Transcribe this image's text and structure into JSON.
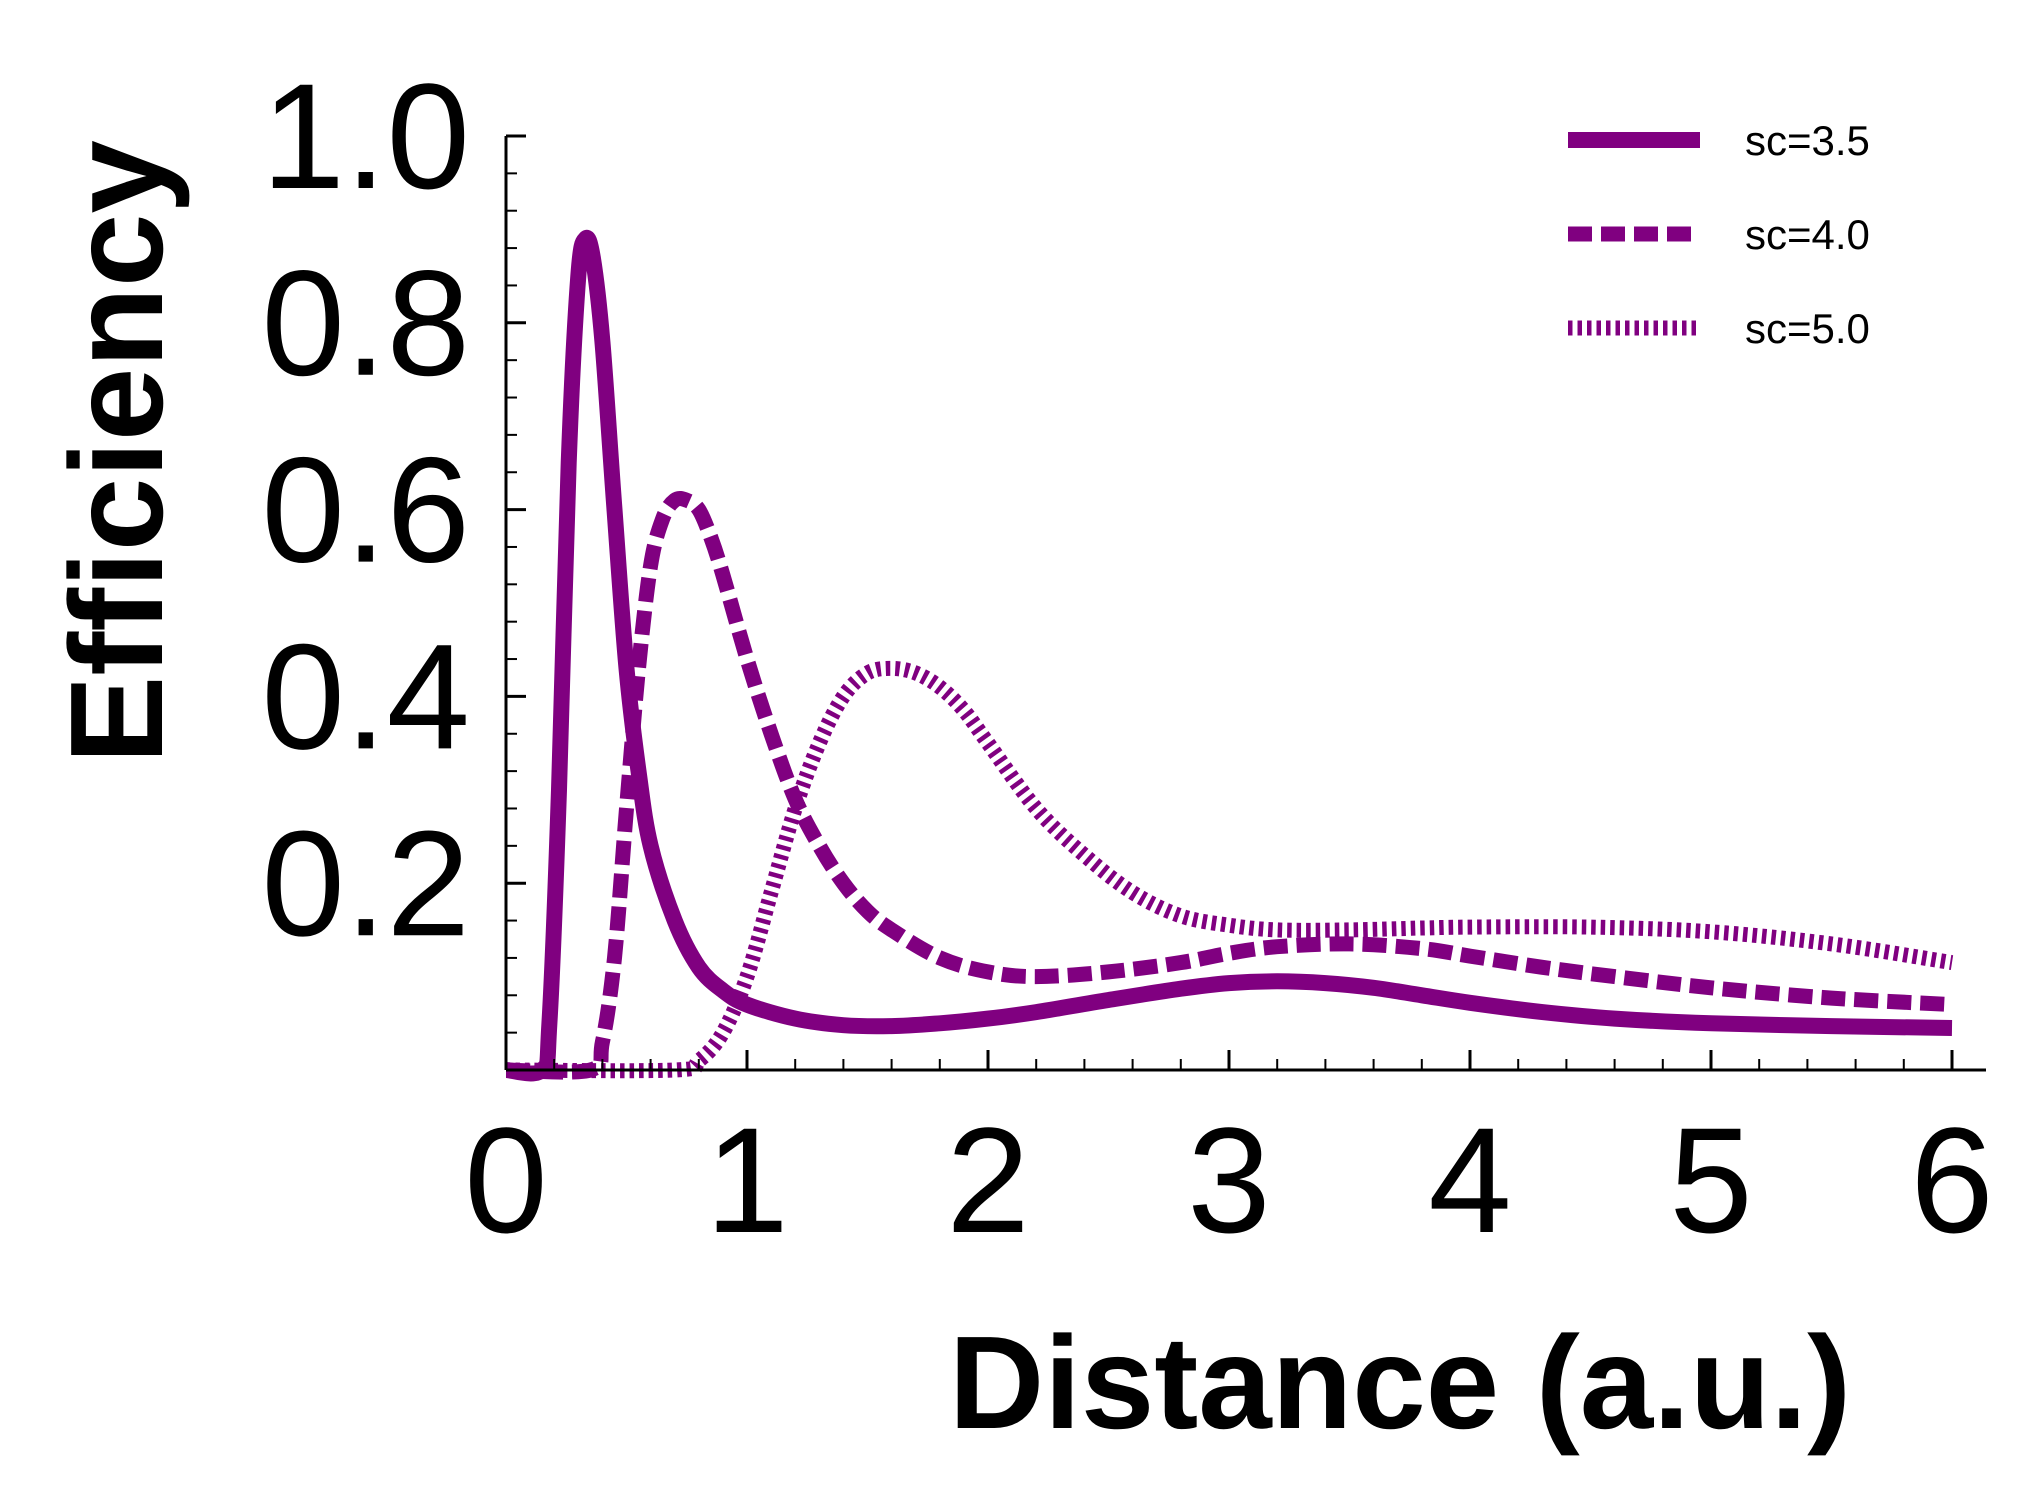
{
  "chart_data": {
    "type": "line",
    "title": "",
    "xlabel": "Distance (a.u.)",
    "ylabel": "Efficiency",
    "xlim": [
      0,
      6
    ],
    "ylim": [
      0,
      1.0
    ],
    "x_ticks": [
      "0",
      "1",
      "2",
      "3",
      "4",
      "5",
      "6"
    ],
    "y_ticks": [
      "0.2",
      "0.4",
      "0.6",
      "0.8",
      "1.0"
    ],
    "grid": false,
    "legend_position": "top-right",
    "color": "#800080",
    "series": [
      {
        "name": "sc=3.5",
        "style": "solid",
        "x": [
          0.0,
          0.15,
          0.18,
          0.22,
          0.26,
          0.3,
          0.33,
          0.36,
          0.4,
          0.45,
          0.5,
          0.55,
          0.6,
          0.7,
          0.8,
          0.9,
          1.0,
          1.2,
          1.4,
          1.6,
          1.8,
          2.0,
          2.2,
          2.5,
          2.8,
          3.0,
          3.2,
          3.4,
          3.6,
          3.8,
          4.0,
          4.3,
          4.6,
          5.0,
          5.5,
          6.0
        ],
        "y": [
          0.0,
          0.0,
          0.05,
          0.3,
          0.65,
          0.85,
          0.89,
          0.87,
          0.78,
          0.6,
          0.43,
          0.32,
          0.24,
          0.16,
          0.11,
          0.085,
          0.07,
          0.055,
          0.048,
          0.047,
          0.05,
          0.055,
          0.062,
          0.075,
          0.087,
          0.093,
          0.095,
          0.093,
          0.088,
          0.08,
          0.072,
          0.062,
          0.055,
          0.05,
          0.047,
          0.045
        ]
      },
      {
        "name": "sc=4.0",
        "style": "dashed",
        "x": [
          0.0,
          0.35,
          0.4,
          0.45,
          0.5,
          0.55,
          0.6,
          0.65,
          0.7,
          0.75,
          0.8,
          0.85,
          0.9,
          1.0,
          1.1,
          1.2,
          1.3,
          1.4,
          1.5,
          1.6,
          1.8,
          2.0,
          2.2,
          2.5,
          2.8,
          3.0,
          3.2,
          3.5,
          3.8,
          4.0,
          4.3,
          4.6,
          5.0,
          5.5,
          6.0
        ],
        "y": [
          0.0,
          0.0,
          0.03,
          0.12,
          0.28,
          0.43,
          0.54,
          0.59,
          0.61,
          0.61,
          0.6,
          0.57,
          0.53,
          0.44,
          0.36,
          0.29,
          0.24,
          0.2,
          0.17,
          0.15,
          0.12,
          0.105,
          0.1,
          0.105,
          0.115,
          0.125,
          0.132,
          0.135,
          0.13,
          0.122,
          0.11,
          0.1,
          0.088,
          0.077,
          0.07
        ]
      },
      {
        "name": "sc=5.0",
        "style": "dotted",
        "x": [
          0.0,
          0.7,
          0.8,
          0.9,
          1.0,
          1.1,
          1.2,
          1.3,
          1.4,
          1.5,
          1.6,
          1.7,
          1.8,
          1.9,
          2.0,
          2.2,
          2.4,
          2.6,
          2.8,
          3.0,
          3.2,
          3.5,
          3.8,
          4.0,
          4.5,
          5.0,
          5.5,
          6.0
        ],
        "y": [
          0.0,
          0.0,
          0.01,
          0.04,
          0.1,
          0.19,
          0.28,
          0.35,
          0.4,
          0.425,
          0.43,
          0.425,
          0.41,
          0.385,
          0.35,
          0.28,
          0.23,
          0.19,
          0.165,
          0.155,
          0.15,
          0.15,
          0.152,
          0.153,
          0.153,
          0.148,
          0.135,
          0.115
        ]
      }
    ]
  }
}
